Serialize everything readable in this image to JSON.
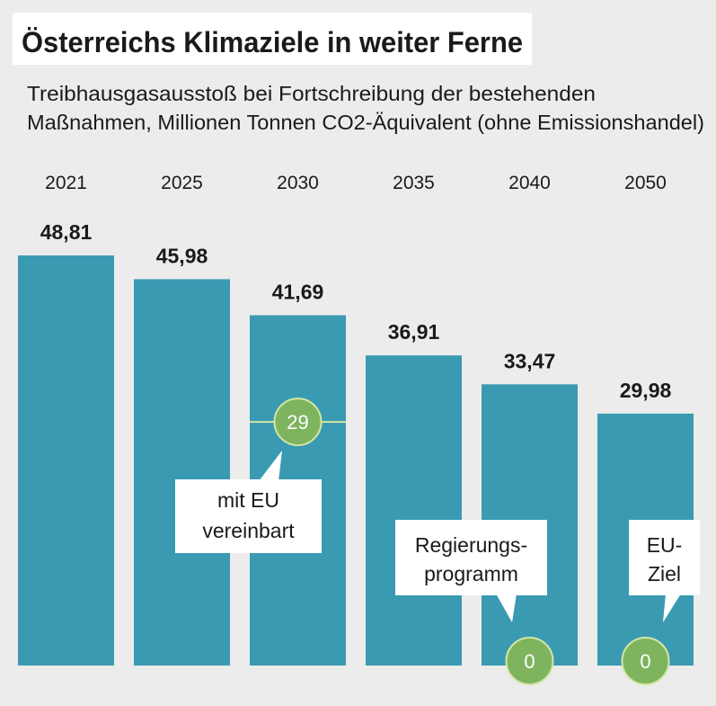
{
  "chart_data": {
    "type": "bar",
    "title": "Österreichs Klimaziele in weiter Ferne",
    "subtitle_lines": [
      "Treibhausgasausstoß bei Fortschreibung der bestehenden",
      "Maßnahmen, Millionen Tonnen CO2-Äquivalent (ohne Emissionshandel)"
    ],
    "categories": [
      "2021",
      "2025",
      "2030",
      "2035",
      "2040",
      "2050"
    ],
    "values": [
      48.81,
      45.98,
      41.69,
      36.91,
      33.47,
      29.98
    ],
    "value_labels": [
      "48,81",
      "45,98",
      "41,69",
      "36,91",
      "33,47",
      "29,98"
    ],
    "targets": [
      {
        "category": "2030",
        "value": 29,
        "label": "29",
        "note_lines": [
          "mit EU",
          "vereinbart"
        ]
      },
      {
        "category": "2040",
        "value": 0,
        "label": "0",
        "note_lines": [
          "Regierungs-",
          "programm"
        ]
      },
      {
        "category": "2050",
        "value": 0,
        "label": "0",
        "note_lines": [
          "EU-",
          "Ziel"
        ]
      }
    ],
    "grid": false
  },
  "colors": {
    "background": "#ececec",
    "title_box": "#ffffff",
    "bar": "#3a9ab2",
    "target": "#7eb45e",
    "target_line": "#d3e6a4"
  }
}
